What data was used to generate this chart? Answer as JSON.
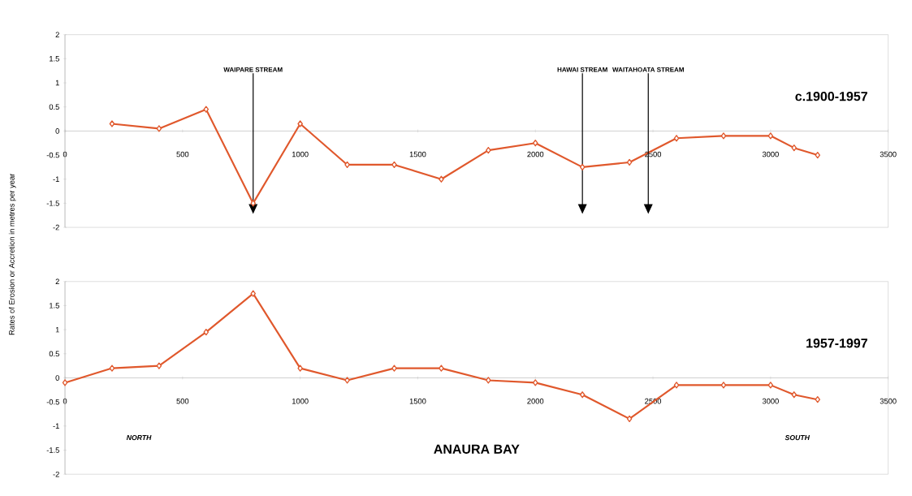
{
  "chart_data": [
    {
      "type": "line",
      "title": "c.1900-1957",
      "ylabel": "Rates of Erosion or Accretion in metres per year",
      "x": [
        200,
        400,
        600,
        800,
        1000,
        1200,
        1400,
        1600,
        1800,
        2000,
        2200,
        2400,
        2600,
        2800,
        3000,
        3100,
        3200
      ],
      "series": [
        {
          "color": "#e0582c",
          "values": [
            0.15,
            0.05,
            0.45,
            -1.5,
            0.15,
            -0.7,
            -0.7,
            -1.0,
            -0.4,
            -0.25,
            -0.75,
            -0.65,
            -0.15,
            -0.1,
            -0.1,
            -0.35,
            -0.5
          ]
        }
      ],
      "xlim": [
        0,
        3500
      ],
      "xticks": [
        0,
        500,
        1000,
        1500,
        2000,
        2500,
        3000,
        3500
      ],
      "ylim": [
        -2,
        2
      ],
      "yticks": [
        -2,
        -1.5,
        -1,
        -0.5,
        0,
        0.5,
        1,
        1.5,
        2
      ],
      "marker": "diamond",
      "line_style": "solid",
      "ref_lines": [
        {
          "axis": "x",
          "value": 800,
          "label": "WAIPARE STREAM"
        },
        {
          "axis": "x",
          "value": 2200,
          "label": "HAWAI STREAM"
        },
        {
          "axis": "x",
          "value": 2480,
          "label": "WAITAHOATA STREAM"
        }
      ]
    },
    {
      "type": "line",
      "title": "1957-1997",
      "xlabel": "ANAURA BAY",
      "x": [
        0,
        200,
        400,
        600,
        800,
        1000,
        1200,
        1400,
        1600,
        1800,
        2000,
        2200,
        2400,
        2600,
        2800,
        3000,
        3100,
        3200
      ],
      "series": [
        {
          "color": "#e0582c",
          "values": [
            -0.1,
            0.2,
            0.25,
            0.95,
            1.75,
            0.2,
            -0.05,
            0.2,
            0.2,
            -0.05,
            -0.1,
            -0.35,
            -0.85,
            -0.15,
            -0.15,
            -0.15,
            -0.35,
            -0.45
          ]
        }
      ],
      "xlim": [
        0,
        3500
      ],
      "xticks": [
        0,
        500,
        1000,
        1500,
        2000,
        2500,
        3000,
        3500
      ],
      "ylim": [
        -2,
        2
      ],
      "yticks": [
        -2,
        -1.5,
        -1,
        -0.5,
        0,
        0.5,
        1,
        1.5,
        2
      ],
      "marker": "diamond",
      "line_style": "solid",
      "annotations": [
        "NORTH",
        "SOUTH"
      ]
    }
  ]
}
